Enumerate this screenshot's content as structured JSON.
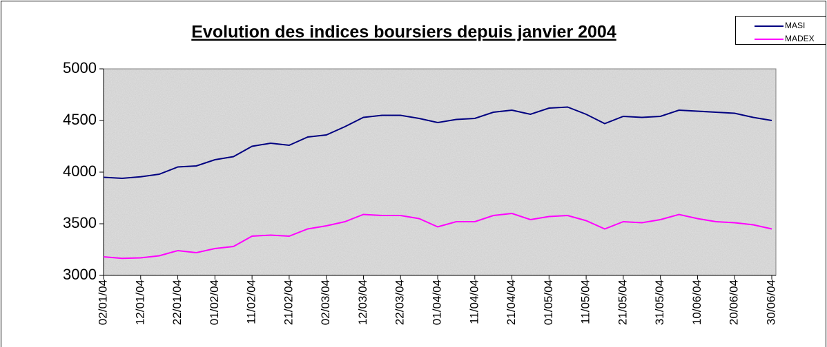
{
  "chart_data": {
    "type": "line",
    "title": "Evolution des indices boursiers depuis janvier 2004",
    "x": [
      "02/01/04",
      "07/01/04",
      "12/01/04",
      "17/01/04",
      "22/01/04",
      "27/01/04",
      "01/02/04",
      "06/02/04",
      "11/02/04",
      "16/02/04",
      "21/02/04",
      "26/02/04",
      "02/03/04",
      "07/03/04",
      "12/03/04",
      "17/03/04",
      "22/03/04",
      "27/03/04",
      "01/04/04",
      "06/04/04",
      "11/04/04",
      "16/04/04",
      "21/04/04",
      "26/04/04",
      "01/05/04",
      "06/05/04",
      "11/05/04",
      "16/05/04",
      "21/05/04",
      "26/05/04",
      "31/05/04",
      "05/06/04",
      "10/06/04",
      "15/06/04",
      "20/06/04",
      "25/06/04",
      "30/06/04"
    ],
    "series": [
      {
        "name": "MASI",
        "color": "#000080",
        "values": [
          3950,
          3940,
          3955,
          3980,
          4050,
          4060,
          4120,
          4150,
          4250,
          4280,
          4260,
          4340,
          4360,
          4440,
          4530,
          4550,
          4550,
          4520,
          4480,
          4510,
          4520,
          4580,
          4600,
          4560,
          4620,
          4630,
          4560,
          4470,
          4540,
          4530,
          4540,
          4600,
          4590,
          4580,
          4570,
          4530,
          4500
        ]
      },
      {
        "name": "MADEX",
        "color": "#ff00ff",
        "values": [
          3180,
          3165,
          3170,
          3190,
          3240,
          3220,
          3260,
          3280,
          3380,
          3390,
          3380,
          3450,
          3480,
          3520,
          3590,
          3580,
          3580,
          3550,
          3470,
          3520,
          3520,
          3580,
          3600,
          3540,
          3570,
          3580,
          3530,
          3450,
          3520,
          3510,
          3540,
          3590,
          3550,
          3520,
          3510,
          3490,
          3450
        ]
      }
    ],
    "xlim": [
      "02/01/04",
      "30/06/04"
    ],
    "xticks": [
      "02/01/04",
      "12/01/04",
      "22/01/04",
      "01/02/04",
      "11/02/04",
      "21/02/04",
      "02/03/04",
      "12/03/04",
      "22/03/04",
      "01/04/04",
      "11/04/04",
      "21/04/04",
      "01/05/04",
      "11/05/04",
      "21/05/04",
      "31/05/04",
      "10/06/04",
      "20/06/04",
      "30/06/04"
    ],
    "ylim": [
      3000,
      5000
    ],
    "yticks": [
      3000,
      3500,
      4000,
      4500,
      5000
    ],
    "legend": "top-right"
  }
}
